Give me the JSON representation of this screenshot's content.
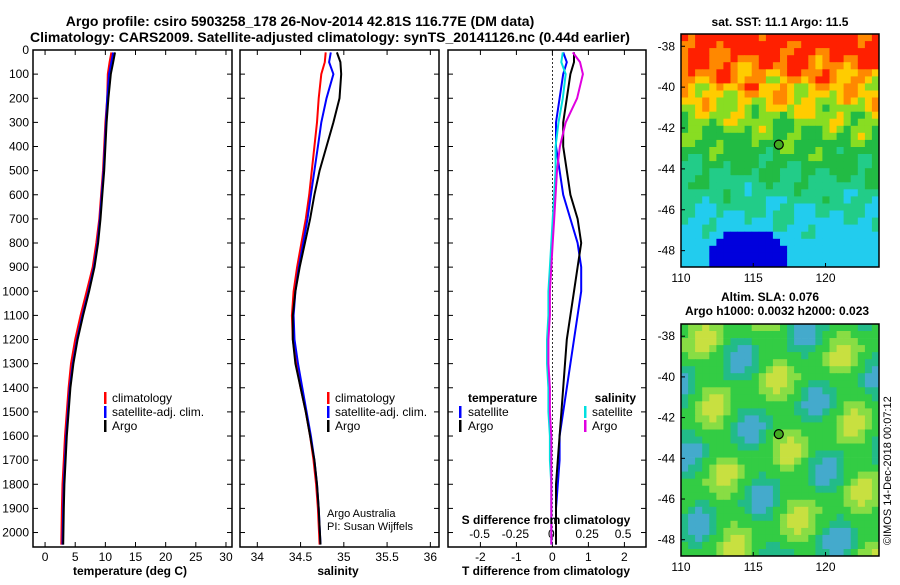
{
  "header": {
    "title_line1": "Argo profile: csiro 5903258_178 26-Nov-2014 42.81S 116.77E (DM data)",
    "title_line2": "Climatology: CARS2009. Satellite-adjusted climatology: synTS_20141126.nc (0.44d earlier)"
  },
  "colors": {
    "climatology": "#ff0000",
    "satellite": "#0000ff",
    "argo": "#000000",
    "sal_satellite": "#00e0e0",
    "sal_argo": "#e000e0"
  },
  "depth_axis": {
    "ticks": [
      0,
      100,
      200,
      300,
      400,
      500,
      600,
      700,
      800,
      900,
      1000,
      1100,
      1200,
      1300,
      1400,
      1500,
      1600,
      1700,
      1800,
      1900,
      2000
    ],
    "range": [
      0,
      2060
    ]
  },
  "chart_data": [
    {
      "type": "line",
      "id": "temperature",
      "xlabel": "temperature (deg C)",
      "xlim": [
        -2,
        31
      ],
      "xticks": [
        0,
        5,
        10,
        15,
        20,
        25,
        30
      ],
      "legend": [
        "climatology",
        "satellite-adj. clim.",
        "Argo"
      ],
      "series": [
        {
          "key": "climatology",
          "x": [
            11.0,
            10.7,
            10.4,
            10.3,
            10.0,
            9.8,
            9.6,
            9.3,
            9.0,
            8.5,
            7.9,
            6.9,
            5.9,
            5.0,
            4.3,
            3.9,
            3.6,
            3.3,
            3.1,
            2.9,
            2.8,
            2.7
          ],
          "y": [
            10,
            50,
            100,
            200,
            300,
            400,
            500,
            600,
            700,
            800,
            900,
            1000,
            1100,
            1200,
            1300,
            1400,
            1500,
            1600,
            1700,
            1800,
            1900,
            2050
          ]
        },
        {
          "key": "satellite",
          "x": [
            11.3,
            11.0,
            10.6,
            10.3,
            10.1,
            9.9,
            9.7,
            9.4,
            9.1,
            8.7,
            8.1,
            7.2,
            6.2,
            5.3,
            4.6,
            4.1,
            3.8,
            3.5,
            3.3,
            3.1,
            3.0,
            2.9
          ],
          "y": [
            10,
            50,
            100,
            200,
            300,
            400,
            500,
            600,
            700,
            800,
            900,
            1000,
            1100,
            1200,
            1300,
            1400,
            1500,
            1600,
            1700,
            1800,
            1900,
            2050
          ]
        },
        {
          "key": "argo",
          "x": [
            11.6,
            11.3,
            10.9,
            10.5,
            10.2,
            10.0,
            9.8,
            9.5,
            9.2,
            8.8,
            8.2,
            7.3,
            6.3,
            5.4,
            4.7,
            4.2,
            3.9,
            3.6,
            3.4,
            3.2,
            3.1,
            3.0
          ],
          "y": [
            10,
            50,
            100,
            200,
            300,
            400,
            500,
            600,
            700,
            800,
            900,
            1000,
            1100,
            1200,
            1300,
            1400,
            1500,
            1600,
            1700,
            1800,
            1900,
            2050
          ]
        }
      ]
    },
    {
      "type": "line",
      "id": "salinity",
      "xlabel": "salinity",
      "xlim": [
        33.8,
        36.1
      ],
      "xticks": [
        34,
        34.5,
        35,
        35.5,
        36
      ],
      "legend": [
        "climatology",
        "satellite-adj. clim.",
        "Argo"
      ],
      "annotation": [
        "Argo Australia",
        "PI: Susan Wijffels"
      ],
      "series": [
        {
          "key": "climatology",
          "x": [
            34.79,
            34.78,
            34.74,
            34.71,
            34.69,
            34.66,
            34.63,
            34.6,
            34.56,
            34.51,
            34.46,
            34.42,
            34.4,
            34.41,
            34.45,
            34.5,
            34.56,
            34.61,
            34.65,
            34.68,
            34.7,
            34.72
          ],
          "y": [
            10,
            50,
            100,
            200,
            300,
            400,
            500,
            600,
            700,
            800,
            900,
            1000,
            1100,
            1200,
            1300,
            1400,
            1500,
            1600,
            1700,
            1800,
            1900,
            2050
          ]
        },
        {
          "key": "satellite",
          "x": [
            34.85,
            34.83,
            34.88,
            34.8,
            34.74,
            34.7,
            34.66,
            34.62,
            34.58,
            34.53,
            34.48,
            34.44,
            34.42,
            34.43,
            34.47,
            34.52,
            34.57,
            34.62,
            34.66,
            34.69,
            34.71,
            34.73
          ],
          "y": [
            10,
            50,
            100,
            200,
            300,
            400,
            500,
            600,
            700,
            800,
            900,
            1000,
            1100,
            1200,
            1300,
            1400,
            1500,
            1600,
            1700,
            1800,
            1900,
            2050
          ]
        },
        {
          "key": "argo",
          "x": [
            34.92,
            34.96,
            34.97,
            34.95,
            34.88,
            34.8,
            34.72,
            34.66,
            34.61,
            34.55,
            34.49,
            34.44,
            34.41,
            34.41,
            34.44,
            34.5,
            34.56,
            34.61,
            34.66,
            34.69,
            34.71,
            34.73
          ],
          "y": [
            10,
            50,
            100,
            200,
            300,
            400,
            500,
            600,
            700,
            800,
            900,
            1000,
            1100,
            1200,
            1300,
            1400,
            1500,
            1600,
            1700,
            1800,
            1900,
            2050
          ]
        }
      ]
    },
    {
      "type": "line",
      "id": "differences",
      "xlabel": "T difference from climatology",
      "xlabel_top": "S difference from climatology",
      "xlim": [
        -2.9,
        2.6
      ],
      "xticks": [
        -2,
        -1,
        0,
        1,
        2
      ],
      "xticks_top": [
        -0.5,
        -0.25,
        0,
        0.25,
        0.5
      ],
      "xticklabels_top": [
        "-0.5",
        "-0.25",
        "0",
        "0.25",
        "0.5"
      ],
      "legend_left_title": "temperature",
      "legend_right_title": "salinity",
      "legend_left": [
        "satellite",
        "Argo"
      ],
      "legend_right": [
        "satellite",
        "Argo"
      ],
      "series": [
        {
          "key": "T satellite",
          "x": [
            0.3,
            0.4,
            0.3,
            0.2,
            0.1,
            0.1,
            0.2,
            0.3,
            0.5,
            0.7,
            0.8,
            0.8,
            0.7,
            0.6,
            0.5,
            0.4,
            0.3,
            0.2,
            0.2,
            0.15,
            0.1,
            0.1
          ],
          "y": [
            10,
            50,
            100,
            200,
            300,
            400,
            500,
            600,
            700,
            800,
            900,
            1000,
            1100,
            1200,
            1300,
            1400,
            1500,
            1600,
            1700,
            1800,
            1900,
            2050
          ]
        },
        {
          "key": "T Argo",
          "x": [
            0.6,
            0.6,
            0.5,
            0.4,
            0.3,
            0.3,
            0.4,
            0.5,
            0.7,
            0.8,
            0.7,
            0.6,
            0.5,
            0.4,
            0.35,
            0.3,
            0.25,
            0.2,
            0.15,
            0.1,
            0.1,
            0.1
          ],
          "y": [
            10,
            50,
            100,
            200,
            300,
            400,
            500,
            600,
            700,
            800,
            900,
            1000,
            1100,
            1200,
            1300,
            1400,
            1500,
            1600,
            1700,
            1800,
            1900,
            2050
          ]
        },
        {
          "key": "S satellite",
          "x": [
            0.08,
            0.07,
            0.1,
            0.08,
            0.05,
            0.03,
            0.03,
            0.02,
            0.01,
            0.0,
            -0.01,
            -0.02,
            -0.02,
            -0.03,
            -0.03,
            -0.02,
            -0.02,
            -0.01,
            -0.01,
            0.0,
            0.0,
            0.0
          ],
          "y": [
            10,
            50,
            100,
            200,
            300,
            400,
            500,
            600,
            700,
            800,
            900,
            1000,
            1100,
            1200,
            1300,
            1400,
            1500,
            1600,
            1700,
            1800,
            1900,
            2050
          ]
        },
        {
          "key": "S Argo",
          "x": [
            0.15,
            0.2,
            0.22,
            0.18,
            0.1,
            0.06,
            0.04,
            0.03,
            0.02,
            0.01,
            0.0,
            -0.01,
            -0.01,
            -0.02,
            -0.02,
            -0.01,
            -0.01,
            0.0,
            0.0,
            0.0,
            0.0,
            0.0
          ],
          "y": [
            10,
            50,
            100,
            200,
            300,
            400,
            500,
            600,
            700,
            800,
            900,
            1000,
            1100,
            1200,
            1300,
            1400,
            1500,
            1600,
            1700,
            1800,
            1900,
            2050
          ]
        }
      ]
    },
    {
      "type": "heatmap",
      "id": "sst-map",
      "title": "sat. SST: 11.1 Argo: 11.5",
      "xticks": [
        110,
        115,
        120
      ],
      "yticks": [
        -38,
        -40,
        -42,
        -44,
        -46,
        -48
      ],
      "ylabels": [
        "-38",
        "-40",
        "-42",
        "-44",
        "-46",
        "-48"
      ],
      "xlim": [
        110,
        123.7
      ],
      "ylim": [
        -48.8,
        -37.4
      ],
      "marker": {
        "lon": 116.77,
        "lat": -42.81
      }
    },
    {
      "type": "heatmap",
      "id": "sla-map",
      "title": "Altim. SLA: 0.076",
      "subtitle": "Argo h1000: 0.0032 h2000: 0.023",
      "xticks": [
        110,
        115,
        120
      ],
      "yticks": [
        -38,
        -40,
        -42,
        -44,
        -46,
        -48
      ],
      "ylabels": [
        "-38",
        "-40",
        "-42",
        "-44",
        "-46",
        "-48"
      ],
      "xlim": [
        110,
        123.7
      ],
      "ylim": [
        -48.8,
        -37.4
      ],
      "marker": {
        "lon": 116.77,
        "lat": -42.81
      }
    }
  ],
  "footer": {
    "stamp": "©IMOS 14-Dec-2018 00:07:12"
  }
}
